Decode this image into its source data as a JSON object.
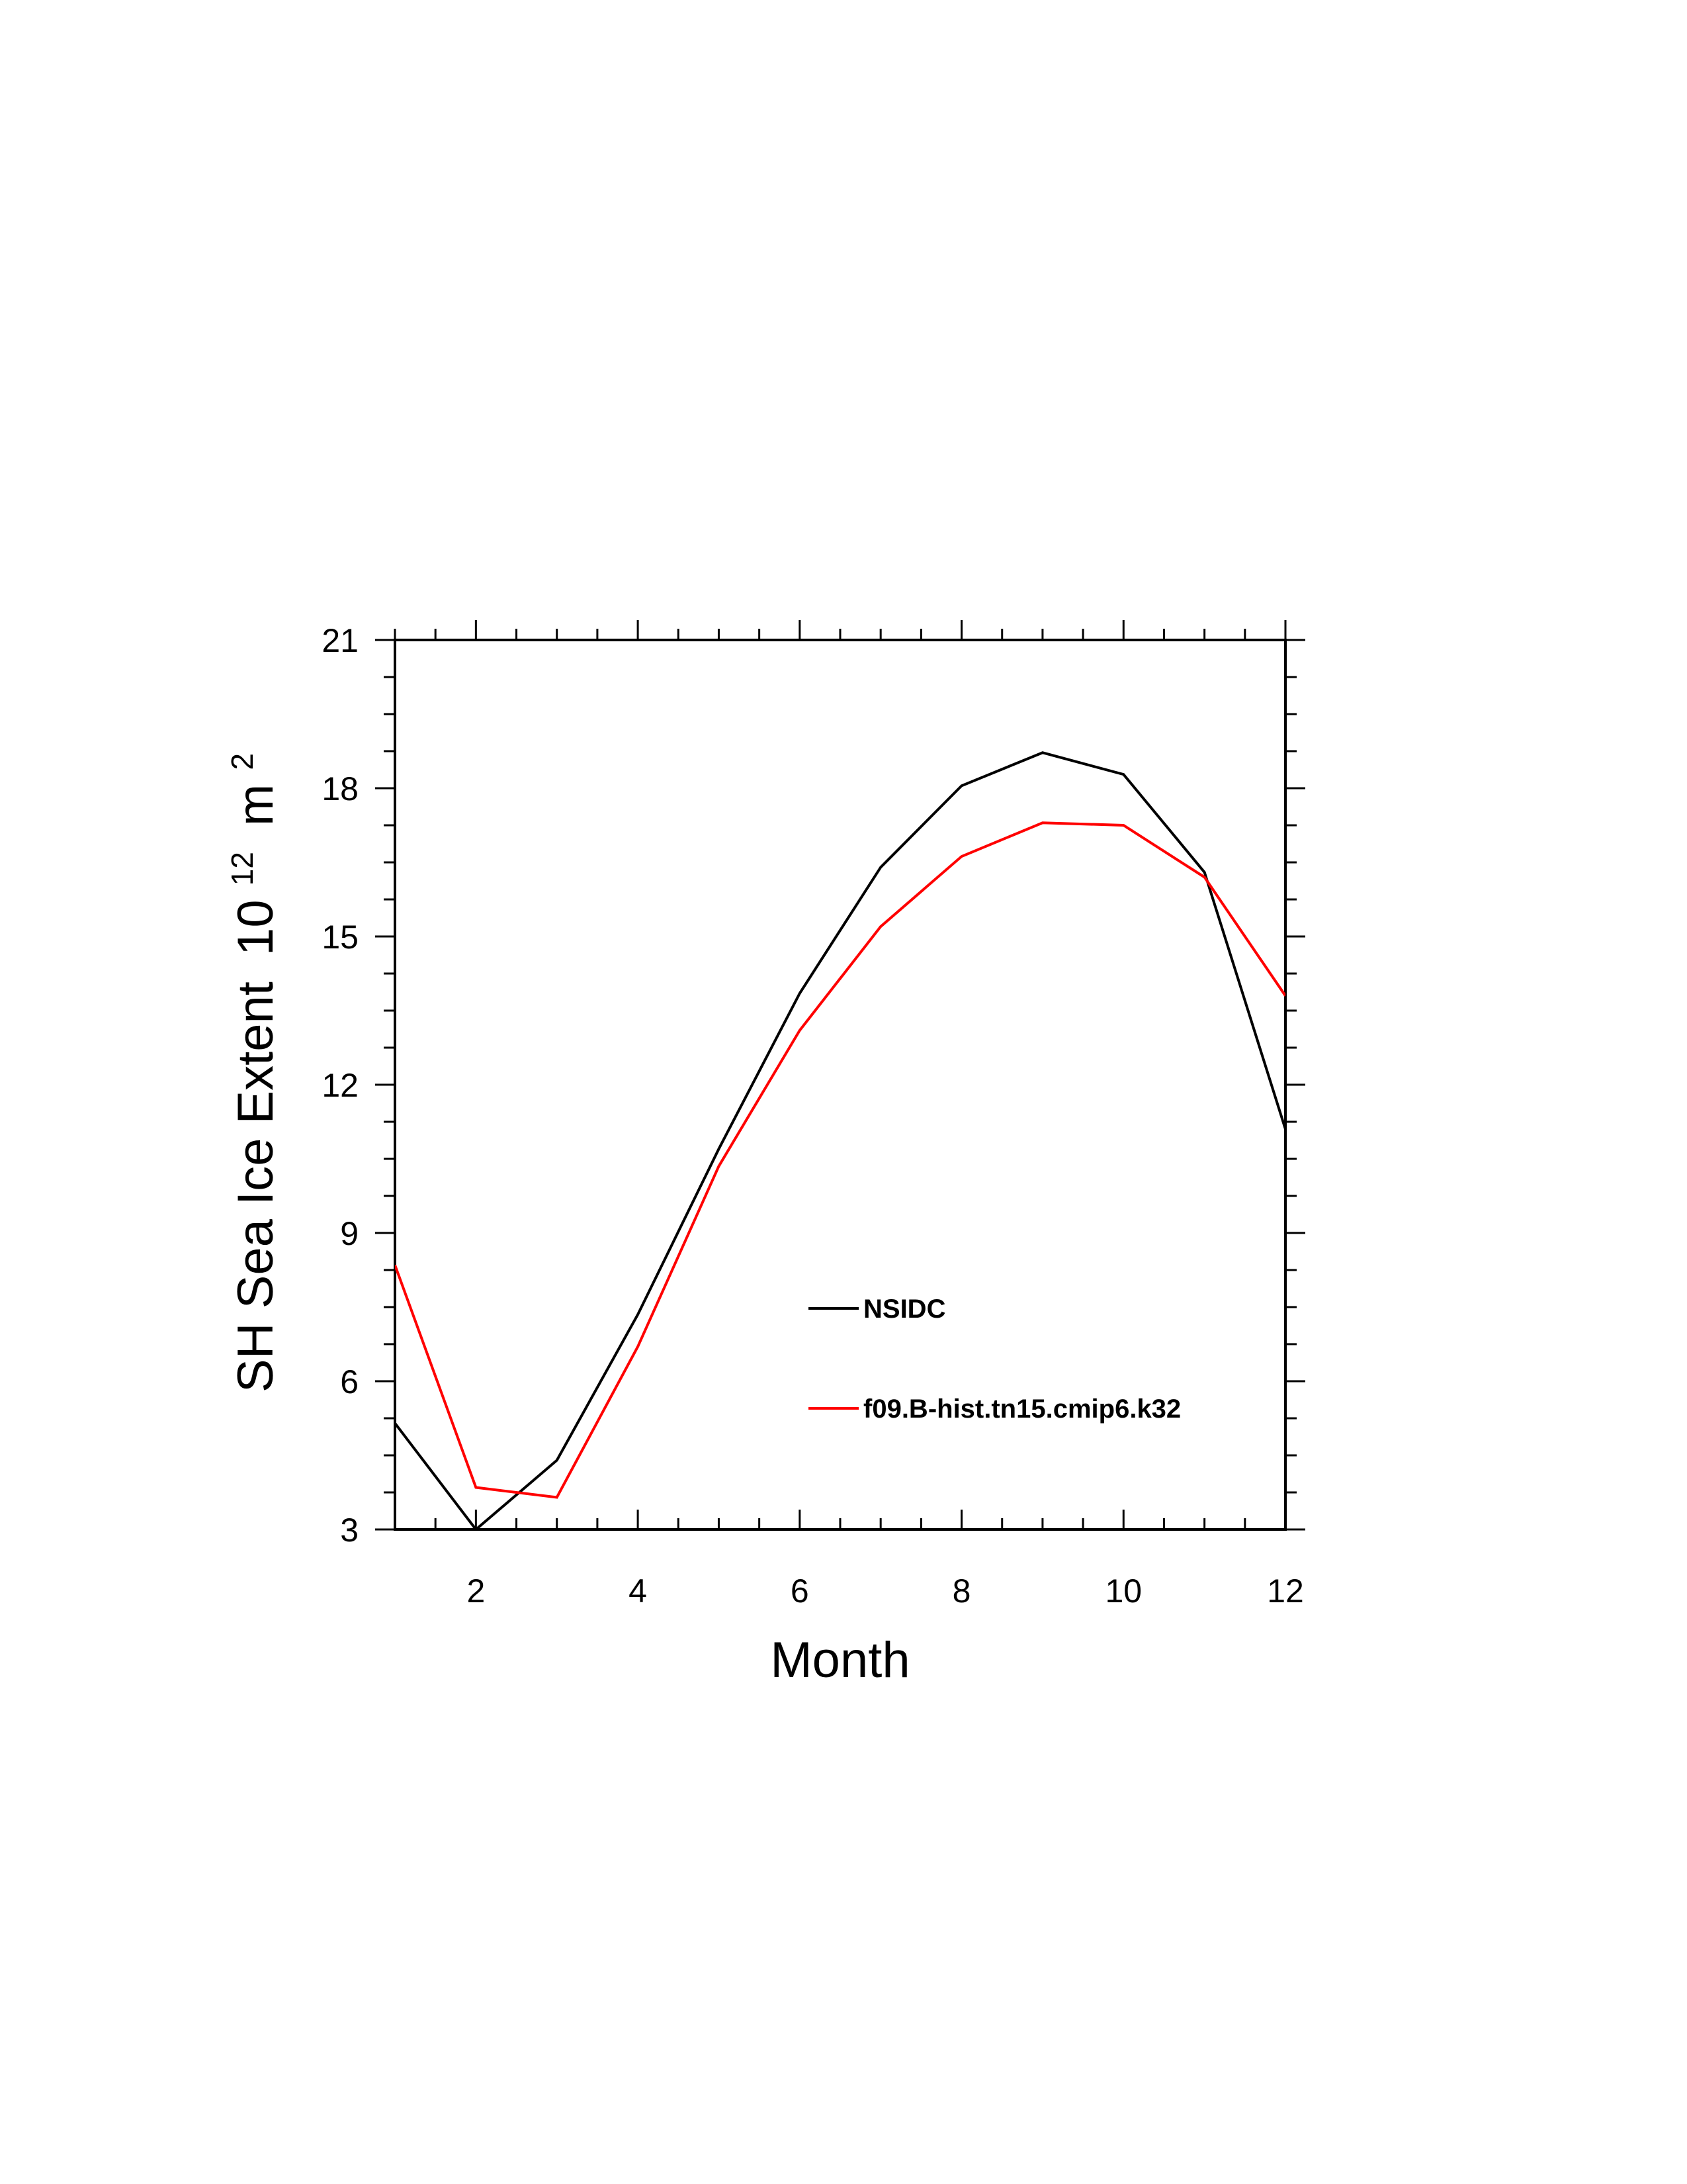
{
  "chart_data": {
    "type": "line",
    "title": "",
    "xlabel": "Month",
    "ylabel": "SH Sea Ice Extent",
    "ylabel_unit_base": "10",
    "ylabel_unit_exp": "12",
    "ylabel_unit_name": "m",
    "ylabel_unit_name_exp": "2",
    "xlim": [
      1,
      12
    ],
    "ylim": [
      3,
      21
    ],
    "xticks": [
      2,
      4,
      6,
      8,
      10,
      12
    ],
    "yticks": [
      3,
      6,
      9,
      12,
      15,
      18,
      21
    ],
    "x": [
      1,
      2,
      3,
      4,
      5,
      6,
      7,
      8,
      9,
      10,
      11,
      12
    ],
    "series": [
      {
        "name": "NSIDC",
        "color": "#000000",
        "values": [
          5.15,
          3.0,
          4.4,
          7.35,
          10.7,
          13.85,
          16.4,
          18.05,
          18.72,
          18.28,
          16.3,
          11.1
        ]
      },
      {
        "name": "f09.B-hist.tn15.cmip6.k32",
        "color": "#ff0000",
        "values": [
          8.35,
          3.85,
          3.65,
          6.7,
          10.35,
          13.1,
          15.2,
          16.62,
          17.3,
          17.25,
          16.2,
          13.8
        ]
      }
    ],
    "legend_position": "inside-lower-center",
    "grid": false
  }
}
